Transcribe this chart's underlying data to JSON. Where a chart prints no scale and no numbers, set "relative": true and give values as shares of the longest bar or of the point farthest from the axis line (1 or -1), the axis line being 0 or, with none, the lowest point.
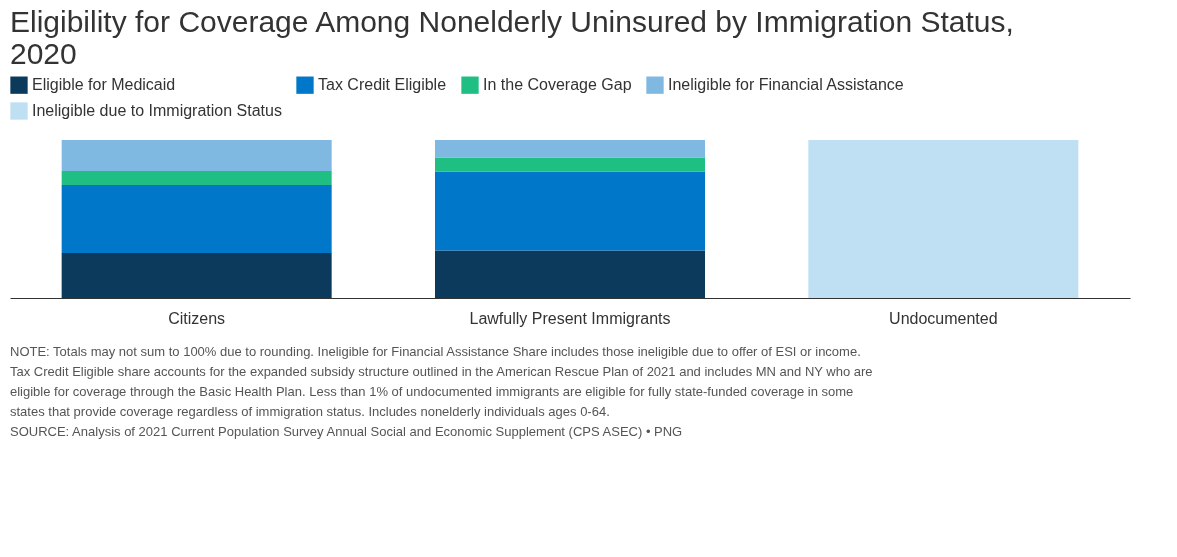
{
  "chart_data": {
    "type": "bar",
    "stacked": true,
    "relative": true,
    "title": "Eligibility for Coverage Among Nonelderly Uninsured by Immigration Status, 2020",
    "categories": [
      "Citizens",
      "Lawfully Present Immigrants",
      "Undocumented"
    ],
    "series": [
      {
        "name": "Eligible for Medicaid",
        "color": "#0b3a5c",
        "values": [
          0.285,
          0.3,
          null
        ]
      },
      {
        "name": "Tax Credit Eligible",
        "color": "#0077c8",
        "values": [
          0.43,
          0.5,
          null
        ]
      },
      {
        "name": "In the Coverage Gap",
        "color": "#1fbf84",
        "values": [
          0.089,
          0.089,
          null
        ]
      },
      {
        "name": "Ineligible for Financial Assistance",
        "color": "#7fb8e0",
        "values": [
          0.196,
          0.111,
          null
        ]
      },
      {
        "name": "Ineligible due to Immigration Status",
        "color": "#bfdff2",
        "values": [
          null,
          null,
          1
        ]
      }
    ],
    "legend": "top",
    "grid": false,
    "annotations": [
      "NOTE: Totals may not sum to 100% due to rounding. Ineligible for Financial Assistance Share includes those ineligible due to offer of ESI or income. Tax Credit Eligible share accounts for the expanded subsidy structure outlined in the American Rescue Plan of 2021 and includes MN and NY who are eligible for coverage through the Basic Health Plan. Less than 1% of undocumented immigrants are eligible for fully state-funded coverage in some states that provide coverage regardless of immigration status. Includes nonelderly individuals ages 0-64.",
      "SOURCE: Analysis of 2021 Current Population Survey Annual Social and Economic Supplement (CPS ASEC) • PNG"
    ]
  }
}
